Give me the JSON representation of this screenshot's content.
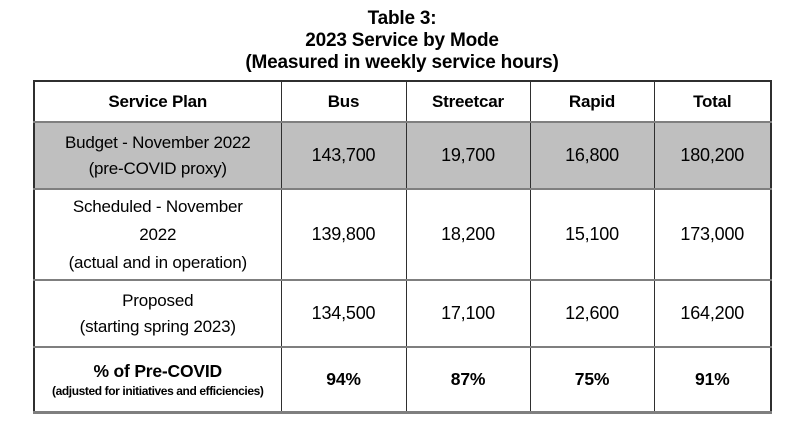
{
  "title": {
    "line1": "Table 3:",
    "line2": "2023 Service by Mode",
    "line3": "(Measured in weekly service hours)"
  },
  "table": {
    "headers": [
      "Service Plan",
      "Bus",
      "Streetcar",
      "Rapid",
      "Total"
    ],
    "rows": [
      {
        "label_lines": [
          "Budget - November 2022",
          "(pre-COVID proxy)"
        ],
        "values": [
          "143,700",
          "19,700",
          "16,800",
          "180,200"
        ],
        "highlighted": true
      },
      {
        "label_lines": [
          "Scheduled - November",
          "2022",
          "(actual and in operation)"
        ],
        "values": [
          "139,800",
          "18,200",
          "15,100",
          "173,000"
        ],
        "highlighted": false
      },
      {
        "label_lines": [
          "Proposed",
          "(starting spring 2023)"
        ],
        "values": [
          "134,500",
          "17,100",
          "12,600",
          "164,200"
        ],
        "highlighted": false
      },
      {
        "label_lines": [
          "% of Pre-COVID",
          "(adjusted for initiatives and efficiencies)"
        ],
        "values": [
          "94%",
          "87%",
          "75%",
          "91%"
        ],
        "highlighted": false,
        "emphasis": true
      }
    ]
  },
  "colors": {
    "page_bg": "#ffffff",
    "text_color": "#000000",
    "highlight_row_bg": "#bfbfbf",
    "row_border": "#7f7f7f",
    "column_border": "#2f2f2f"
  }
}
